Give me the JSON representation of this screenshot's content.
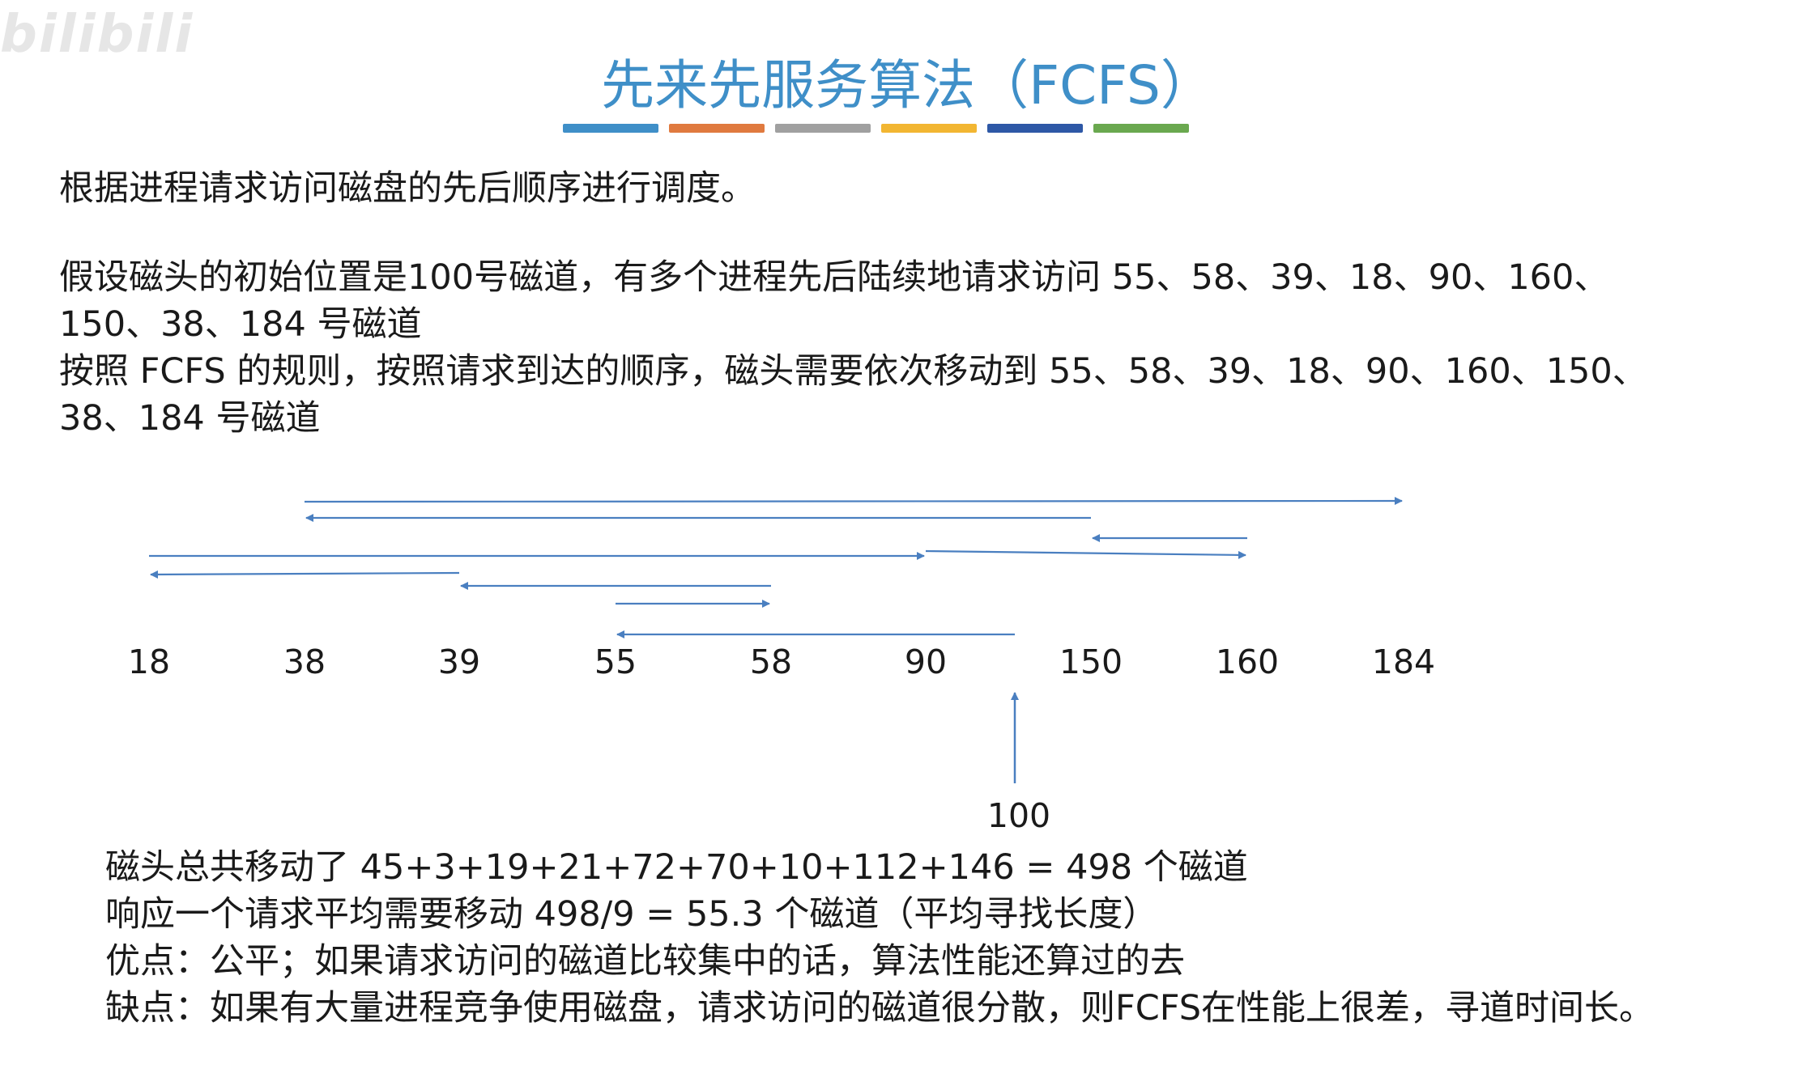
{
  "watermark": "bilibili",
  "title": "先来先服务算法（FCFS）",
  "title_bar_colors": [
    "#3f8fc8",
    "#e07a3f",
    "#a0a0a0",
    "#f2b632",
    "#2e58a6",
    "#6aa84f"
  ],
  "intro": "根据进程请求访问磁盘的先后顺序进行调度。",
  "assumption": {
    "line1": "假设磁头的初始位置是100号磁道，有多个进程先后陆续地请求访问 55、58、39、18、90、160、",
    "line2": "150、38、184 号磁道",
    "line3": "按照 FCFS 的规则，按照请求到达的顺序，磁头需要依次移动到 55、58、39、18、90、160、150、",
    "line4": "38、184 号磁道"
  },
  "diagram": {
    "arrow_color": "#4a7fc0",
    "tracks": [
      "18",
      "38",
      "39",
      "55",
      "58",
      "90",
      "150",
      "160",
      "184"
    ],
    "start_label": "100",
    "sequence": [
      100,
      55,
      58,
      39,
      18,
      90,
      160,
      150,
      38,
      184
    ]
  },
  "summary": {
    "line1": "磁头总共移动了  45+3+19+21+72+70+10+112+146 = 498  个磁道",
    "line2": "响应一个请求平均需要移动 498/9 = 55.3 个磁道（平均寻找长度）",
    "line3": "优点：公平；如果请求访问的磁道比较集中的话，算法性能还算过的去",
    "line4": "缺点：如果有大量进程竞争使用磁盘，请求访问的磁道很分散，则FCFS在性能上很差，寻道时间长。"
  }
}
